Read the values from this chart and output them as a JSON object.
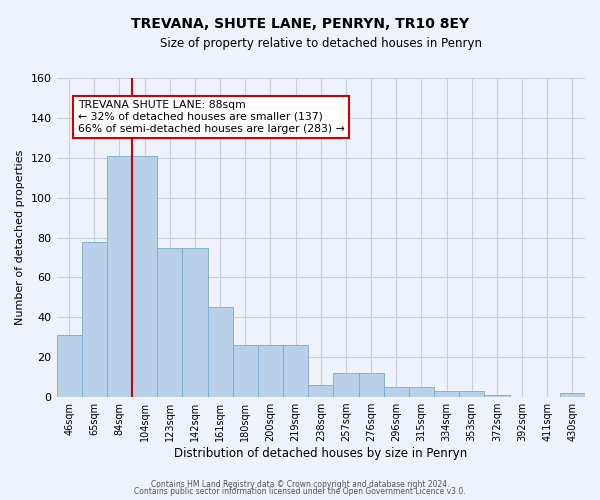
{
  "title": "TREVANA, SHUTE LANE, PENRYN, TR10 8EY",
  "subtitle": "Size of property relative to detached houses in Penryn",
  "xlabel": "Distribution of detached houses by size in Penryn",
  "ylabel": "Number of detached properties",
  "bar_values": [
    31,
    78,
    121,
    121,
    75,
    75,
    45,
    26,
    26,
    26,
    6,
    12,
    12,
    5,
    5,
    3,
    3,
    1,
    0,
    0,
    2
  ],
  "x_labels": [
    "46sqm",
    "65sqm",
    "84sqm",
    "104sqm",
    "123sqm",
    "142sqm",
    "161sqm",
    "180sqm",
    "200sqm",
    "219sqm",
    "238sqm",
    "257sqm",
    "276sqm",
    "296sqm",
    "315sqm",
    "334sqm",
    "353sqm",
    "372sqm",
    "392sqm",
    "411sqm",
    "430sqm"
  ],
  "bar_color": "#b8d0e8",
  "bar_edge_color": "#7aaac8",
  "background_color": "#eef2fa",
  "grid_color": "#c5cfdf",
  "vline_x": 2.5,
  "vline_color": "#cc0000",
  "annotation_title": "TREVANA SHUTE LANE: 88sqm",
  "annotation_line1": "← 32% of detached houses are smaller (137)",
  "annotation_line2": "66% of semi-detached houses are larger (283) →",
  "annotation_box_color": "#ffffff",
  "annotation_box_edge": "#cc0000",
  "ylim": [
    0,
    160
  ],
  "yticks": [
    0,
    20,
    40,
    60,
    80,
    100,
    120,
    140,
    160
  ],
  "footer1": "Contains HM Land Registry data © Crown copyright and database right 2024.",
  "footer2": "Contains public sector information licensed under the Open Government Licence v3.0."
}
